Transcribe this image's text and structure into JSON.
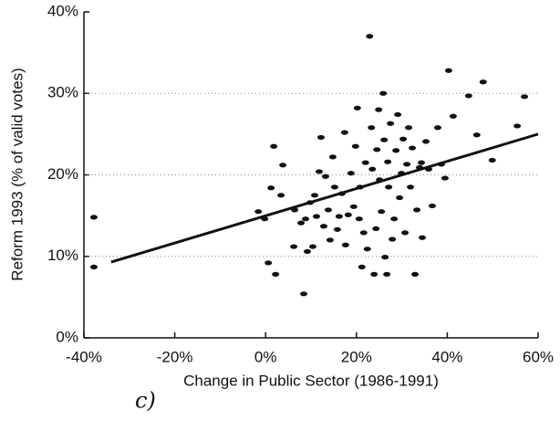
{
  "chart_data": {
    "type": "scatter",
    "x_label": "Change in Public Sector (1986-1991)",
    "y_label": "Reform 1993 (% of valid votes)",
    "annotation": "c)",
    "color": "#111111",
    "grid": true,
    "xlim": [
      -40,
      60
    ],
    "ylim": [
      0,
      40
    ],
    "xticks": [
      {
        "value": -40,
        "label": "-40%"
      },
      {
        "value": -20,
        "label": "-20%"
      },
      {
        "value": 0,
        "label": "0%"
      },
      {
        "value": 20,
        "label": "20%"
      },
      {
        "value": 40,
        "label": "40%"
      },
      {
        "value": 60,
        "label": "60%"
      }
    ],
    "yticks": [
      {
        "value": 0,
        "label": "0%"
      },
      {
        "value": 10,
        "label": "10%"
      },
      {
        "value": 20,
        "label": "20%"
      },
      {
        "value": 30,
        "label": "30%"
      },
      {
        "value": 40,
        "label": "40%"
      }
    ],
    "x": [
      -37.8,
      -37.8,
      1.2,
      1.8,
      3.4,
      3.8,
      -1.6,
      -0.2,
      0.6,
      2.2,
      6.2,
      6.4,
      7.8,
      8.4,
      8.8,
      9.2,
      9.8,
      10.4,
      10.8,
      11.2,
      11.8,
      12.2,
      12.8,
      13.2,
      13.8,
      14.2,
      14.8,
      15.2,
      15.8,
      16.2,
      16.8,
      17.4,
      17.6,
      18.2,
      18.8,
      19.4,
      19.8,
      20.2,
      20.6,
      20.8,
      21.2,
      21.6,
      22.0,
      22.4,
      22.9,
      23.3,
      23.5,
      23.9,
      24.3,
      24.5,
      24.9,
      25.1,
      25.5,
      25.9,
      26.1,
      26.3,
      26.7,
      26.9,
      27.1,
      27.5,
      27.9,
      28.3,
      28.7,
      29.1,
      29.5,
      29.9,
      30.3,
      30.7,
      31.1,
      31.5,
      31.9,
      32.3,
      32.9,
      33.3,
      33.9,
      34.5,
      35.3,
      35.9,
      36.7,
      37.9,
      38.7,
      39.5,
      40.3,
      41.3,
      44.7,
      46.5,
      47.9,
      49.9,
      55.4,
      57.0,
      34.3
    ],
    "values": [
      14.8,
      8.7,
      18.4,
      23.5,
      17.5,
      21.2,
      15.5,
      14.6,
      9.2,
      7.8,
      11.2,
      15.7,
      14.1,
      5.4,
      14.6,
      10.6,
      16.6,
      11.2,
      17.5,
      14.9,
      20.4,
      24.6,
      13.7,
      19.8,
      15.7,
      12.0,
      22.2,
      18.5,
      13.3,
      14.9,
      17.7,
      25.2,
      11.4,
      15.1,
      20.2,
      16.1,
      23.5,
      28.2,
      14.6,
      18.5,
      8.7,
      12.9,
      21.5,
      10.9,
      37.0,
      25.8,
      20.7,
      7.8,
      13.4,
      23.1,
      28.0,
      19.4,
      15.5,
      30.0,
      24.3,
      9.9,
      7.8,
      21.6,
      18.5,
      26.3,
      12.1,
      14.6,
      23.0,
      27.4,
      17.2,
      20.2,
      24.4,
      12.9,
      21.3,
      25.8,
      18.5,
      23.3,
      7.8,
      15.7,
      20.9,
      12.3,
      24.1,
      20.7,
      16.2,
      25.8,
      21.3,
      19.6,
      32.8,
      27.2,
      29.7,
      24.9,
      31.4,
      21.8,
      26.0,
      29.6,
      21.5
    ],
    "trendline": {
      "x": [
        -34,
        60
      ],
      "values": [
        9.3,
        25.0
      ]
    }
  }
}
